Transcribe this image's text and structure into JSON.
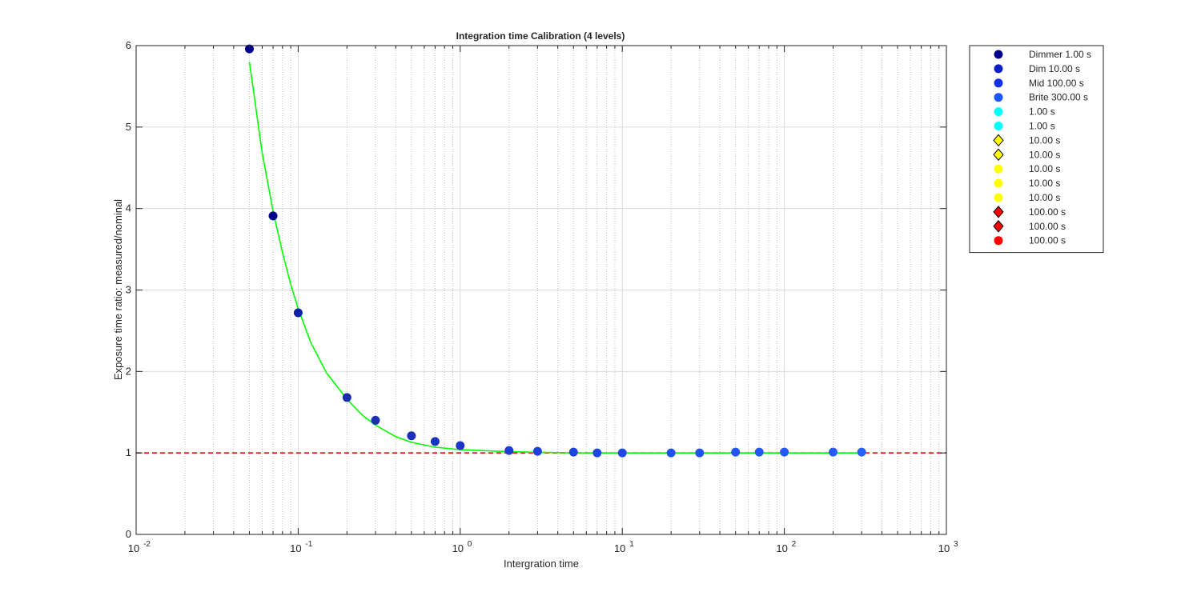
{
  "chart_data": {
    "type": "scatter",
    "title": "Integration time Calibration (4 levels)",
    "xlabel": "Intergration time",
    "ylabel": "Exposure time ratio: measured/nominal",
    "xscale": "log",
    "xlim": [
      0.01,
      1000
    ],
    "ylim": [
      0,
      6
    ],
    "x_ticks": [
      {
        "base": "10",
        "exp": "-2",
        "value": 0.01
      },
      {
        "base": "10",
        "exp": "-1",
        "value": 0.1
      },
      {
        "base": "10",
        "exp": "0",
        "value": 1
      },
      {
        "base": "10",
        "exp": "1",
        "value": 10
      },
      {
        "base": "10",
        "exp": "2",
        "value": 100
      },
      {
        "base": "10",
        "exp": "3",
        "value": 1000
      }
    ],
    "y_ticks": [
      "0",
      "1",
      "2",
      "3",
      "4",
      "5",
      "6"
    ],
    "grid": true,
    "legend_position": "outside-right",
    "data_points": {
      "x": [
        0.05,
        0.07,
        0.1,
        0.2,
        0.3,
        0.5,
        0.7,
        1,
        2,
        3,
        5,
        7,
        10,
        20,
        30,
        50,
        70,
        100,
        200,
        300
      ],
      "y": [
        5.96,
        3.91,
        2.72,
        1.68,
        1.4,
        1.21,
        1.14,
        1.09,
        1.03,
        1.02,
        1.01,
        1.0,
        1.0,
        1.0,
        1.0,
        1.01,
        1.01,
        1.01,
        1.01,
        1.01
      ],
      "colors": [
        "#00008b",
        "#00008b",
        "#0a1fa8",
        "#1a2fa8",
        "#1a30b0",
        "#1a30b8",
        "#1b34c0",
        "#1b35c8",
        "#1c3ed8",
        "#1d40dc",
        "#1e44e0",
        "#1e46e4",
        "#1f48e8",
        "#2050ee",
        "#2152f0",
        "#2255f2",
        "#2357f4",
        "#2459f6",
        "#255cf8",
        "#265ffa"
      ]
    },
    "fit_curve": {
      "color": "#00ff00",
      "x": [
        0.05,
        0.06,
        0.07,
        0.08,
        0.09,
        0.1,
        0.12,
        0.15,
        0.2,
        0.25,
        0.3,
        0.4,
        0.5,
        0.7,
        1,
        1.5,
        2,
        3,
        5,
        7,
        10,
        20,
        50,
        100,
        200,
        300
      ],
      "y": [
        5.8,
        4.68,
        3.97,
        3.46,
        3.07,
        2.77,
        2.35,
        1.98,
        1.66,
        1.46,
        1.34,
        1.2,
        1.13,
        1.07,
        1.04,
        1.025,
        1.015,
        1.008,
        1.002,
        1.0,
        1.0,
        1.0,
        1.0,
        1.0,
        1.0,
        1.0
      ]
    },
    "reference_line": {
      "y": 1,
      "color": "#dd0000",
      "style": "dashed"
    },
    "legend": [
      {
        "label": "Dimmer 1.00 s",
        "marker": "circle",
        "color": "#00008b"
      },
      {
        "label": "Dim 10.00 s",
        "marker": "circle",
        "color": "#0a1fc8"
      },
      {
        "label": "Mid 100.00 s",
        "marker": "circle",
        "color": "#1030e8"
      },
      {
        "label": "Brite 300.00 s",
        "marker": "circle",
        "color": "#1a55ff"
      },
      {
        "label": "1.00 s",
        "marker": "circle",
        "color": "#00ffff"
      },
      {
        "label": "1.00 s",
        "marker": "circle",
        "color": "#00ffff"
      },
      {
        "label": "10.00 s",
        "marker": "diamond",
        "color": "#ffff00"
      },
      {
        "label": "10.00 s",
        "marker": "diamond",
        "color": "#ffff00"
      },
      {
        "label": "10.00 s",
        "marker": "circle",
        "color": "#ffff00"
      },
      {
        "label": "10.00 s",
        "marker": "circle",
        "color": "#ffff00"
      },
      {
        "label": "10.00 s",
        "marker": "circle",
        "color": "#ffff00"
      },
      {
        "label": "100.00 s",
        "marker": "diamond",
        "color": "#ff0000"
      },
      {
        "label": "100.00 s",
        "marker": "diamond",
        "color": "#ff0000"
      },
      {
        "label": "100.00 s",
        "marker": "circle",
        "color": "#ff0000"
      }
    ]
  }
}
